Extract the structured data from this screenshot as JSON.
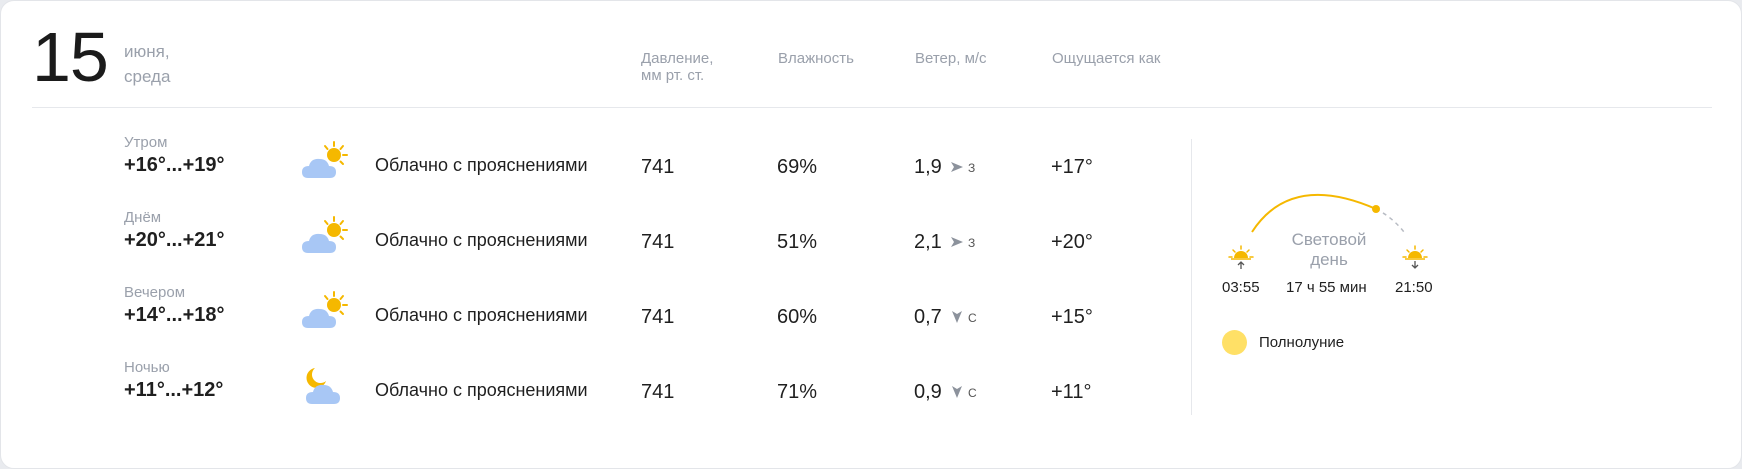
{
  "date": {
    "day": "15",
    "month": "июня,",
    "weekday": "среда"
  },
  "headers": {
    "pressure_line1": "Давление,",
    "pressure_line2": "мм рт. ст.",
    "humidity": "Влажность",
    "wind": "Ветер, м/с",
    "feels": "Ощущается как"
  },
  "rows": [
    {
      "part": "Утром",
      "temp": "+16°...+19°",
      "icon": "partly-cloudy-day-icon",
      "condition": "Облачно с прояснениями",
      "pressure": "741",
      "humidity": "69%",
      "wind_speed": "1,9",
      "wind_icon": "wind-arrow-east-icon",
      "wind_dir": "З",
      "feels": "+17°"
    },
    {
      "part": "Днём",
      "temp": "+20°...+21°",
      "icon": "partly-cloudy-day-icon",
      "condition": "Облачно с прояснениями",
      "pressure": "741",
      "humidity": "51%",
      "wind_speed": "2,1",
      "wind_icon": "wind-arrow-east-icon",
      "wind_dir": "З",
      "feels": "+20°"
    },
    {
      "part": "Вечером",
      "temp": "+14°...+18°",
      "icon": "partly-cloudy-day-icon",
      "condition": "Облачно с прояснениями",
      "pressure": "741",
      "humidity": "60%",
      "wind_speed": "0,7",
      "wind_icon": "wind-arrow-south-icon",
      "wind_dir": "С",
      "feels": "+15°"
    },
    {
      "part": "Ночью",
      "temp": "+11°...+12°",
      "icon": "partly-cloudy-night-icon",
      "condition": "Облачно с прояснениями",
      "pressure": "741",
      "humidity": "71%",
      "wind_speed": "0,9",
      "wind_icon": "wind-arrow-south-icon",
      "wind_dir": "С",
      "feels": "+11°"
    }
  ],
  "daylight": {
    "label_line1": "Световой",
    "label_line2": "день",
    "sunrise": "03:55",
    "duration": "17 ч 55 мин",
    "sunset": "21:50"
  },
  "moon": {
    "phase": "Полнолуние",
    "color": "#ffe066"
  },
  "colors": {
    "sun": "#f5b800",
    "cloud": "#a8c7f5",
    "muted": "#9aa0ab"
  }
}
